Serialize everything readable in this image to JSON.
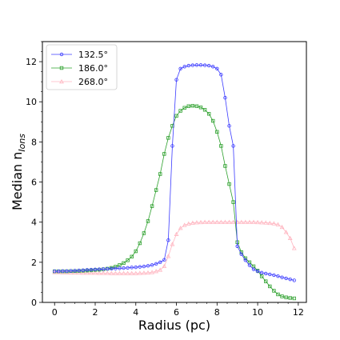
{
  "chart_data": {
    "type": "line",
    "xlabel": "Radius (pc)",
    "ylabel_main": "Median n",
    "ylabel_sub": "Ions",
    "xlim": [
      -0.6,
      12.4
    ],
    "ylim": [
      0,
      13
    ],
    "xticks": [
      "0",
      "2",
      "4",
      "6",
      "8",
      "10",
      "12"
    ],
    "yticks": [
      "0",
      "2",
      "4",
      "6",
      "8",
      "10",
      "12"
    ],
    "grid": false,
    "legend_position": "top-left",
    "series": [
      {
        "name": "132.5°",
        "color": "#3b3bff",
        "marker": "circle",
        "x": [
          0.0,
          0.2,
          0.4,
          0.6,
          0.8,
          1.0,
          1.2,
          1.4,
          1.6,
          1.8,
          2.0,
          2.2,
          2.4,
          2.6,
          2.8,
          3.0,
          3.2,
          3.4,
          3.6,
          3.8,
          4.0,
          4.2,
          4.4,
          4.6,
          4.8,
          5.0,
          5.2,
          5.4,
          5.6,
          5.8,
          6.0,
          6.2,
          6.4,
          6.6,
          6.8,
          7.0,
          7.2,
          7.4,
          7.6,
          7.8,
          8.0,
          8.2,
          8.4,
          8.6,
          8.8,
          9.0,
          9.2,
          9.4,
          9.6,
          9.8,
          10.0,
          10.2,
          10.4,
          10.6,
          10.8,
          11.0,
          11.2,
          11.4,
          11.6,
          11.8
        ],
        "y": [
          1.55,
          1.55,
          1.56,
          1.56,
          1.57,
          1.58,
          1.59,
          1.6,
          1.62,
          1.63,
          1.64,
          1.65,
          1.66,
          1.67,
          1.68,
          1.69,
          1.7,
          1.71,
          1.72,
          1.74,
          1.75,
          1.77,
          1.79,
          1.82,
          1.86,
          1.92,
          2.0,
          2.12,
          3.1,
          7.8,
          11.1,
          11.65,
          11.75,
          11.8,
          11.82,
          11.83,
          11.83,
          11.82,
          11.8,
          11.75,
          11.65,
          11.35,
          10.2,
          8.8,
          7.8,
          2.8,
          2.4,
          2.1,
          1.85,
          1.65,
          1.55,
          1.48,
          1.44,
          1.4,
          1.36,
          1.31,
          1.25,
          1.2,
          1.15,
          1.1
        ]
      },
      {
        "name": "186.0°",
        "color": "#2ca02c",
        "marker": "square",
        "x": [
          0.0,
          0.2,
          0.4,
          0.6,
          0.8,
          1.0,
          1.2,
          1.4,
          1.6,
          1.8,
          2.0,
          2.2,
          2.4,
          2.6,
          2.8,
          3.0,
          3.2,
          3.4,
          3.6,
          3.8,
          4.0,
          4.2,
          4.4,
          4.6,
          4.8,
          5.0,
          5.2,
          5.4,
          5.6,
          5.8,
          6.0,
          6.2,
          6.4,
          6.6,
          6.8,
          7.0,
          7.2,
          7.4,
          7.6,
          7.8,
          8.0,
          8.2,
          8.4,
          8.6,
          8.8,
          9.0,
          9.2,
          9.4,
          9.6,
          9.8,
          10.0,
          10.2,
          10.4,
          10.6,
          10.8,
          11.0,
          11.2,
          11.4,
          11.6,
          11.8
        ],
        "y": [
          1.55,
          1.55,
          1.55,
          1.55,
          1.56,
          1.56,
          1.57,
          1.58,
          1.59,
          1.6,
          1.62,
          1.63,
          1.65,
          1.68,
          1.72,
          1.78,
          1.86,
          1.96,
          2.1,
          2.28,
          2.55,
          2.95,
          3.45,
          4.05,
          4.8,
          5.6,
          6.4,
          7.4,
          8.2,
          8.8,
          9.3,
          9.55,
          9.7,
          9.78,
          9.8,
          9.78,
          9.72,
          9.6,
          9.4,
          9.05,
          8.5,
          7.8,
          6.8,
          5.9,
          5.0,
          3.0,
          2.5,
          2.2,
          2.0,
          1.8,
          1.58,
          1.3,
          1.05,
          0.8,
          0.58,
          0.4,
          0.3,
          0.25,
          0.22,
          0.2
        ]
      },
      {
        "name": "268.0°",
        "color": "#ffb6c1",
        "marker": "triangle",
        "x": [
          0.0,
          0.2,
          0.4,
          0.6,
          0.8,
          1.0,
          1.2,
          1.4,
          1.6,
          1.8,
          2.0,
          2.2,
          2.4,
          2.6,
          2.8,
          3.0,
          3.2,
          3.4,
          3.6,
          3.8,
          4.0,
          4.2,
          4.4,
          4.6,
          4.8,
          5.0,
          5.2,
          5.4,
          5.6,
          5.8,
          6.0,
          6.2,
          6.4,
          6.6,
          6.8,
          7.0,
          7.2,
          7.4,
          7.6,
          7.8,
          8.0,
          8.2,
          8.4,
          8.6,
          8.8,
          9.0,
          9.2,
          9.4,
          9.6,
          9.8,
          10.0,
          10.2,
          10.4,
          10.6,
          10.8,
          11.0,
          11.2,
          11.4,
          11.6,
          11.8
        ],
        "y": [
          1.5,
          1.5,
          1.49,
          1.49,
          1.48,
          1.48,
          1.48,
          1.47,
          1.47,
          1.47,
          1.47,
          1.46,
          1.46,
          1.46,
          1.45,
          1.45,
          1.45,
          1.45,
          1.45,
          1.45,
          1.45,
          1.46,
          1.47,
          1.48,
          1.5,
          1.55,
          1.62,
          1.8,
          2.3,
          2.9,
          3.4,
          3.7,
          3.85,
          3.92,
          3.96,
          3.98,
          3.99,
          4.0,
          4.0,
          4.0,
          4.0,
          4.0,
          4.0,
          4.0,
          4.0,
          4.0,
          4.0,
          4.0,
          4.0,
          4.0,
          3.99,
          3.98,
          3.97,
          3.95,
          3.93,
          3.88,
          3.75,
          3.5,
          3.2,
          2.7
        ]
      }
    ]
  }
}
